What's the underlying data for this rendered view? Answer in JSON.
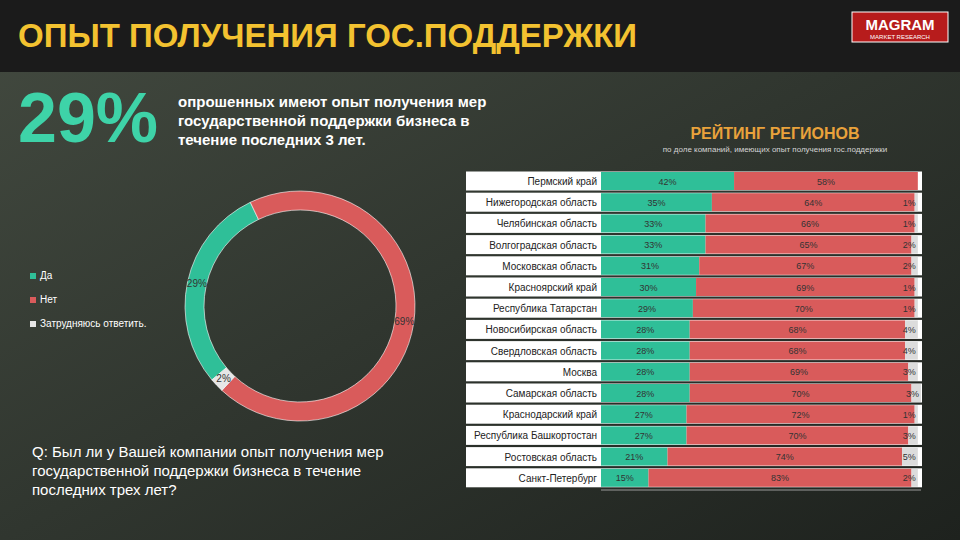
{
  "header": {
    "title": "ОПЫТ ПОЛУЧЕНИЯ ГОС.ПОДДЕРЖКИ",
    "logo": "MAGRAM",
    "logo_subtitle": "MARKET RESEARCH"
  },
  "headline": {
    "figure": "29%",
    "text": "опрошенных имеют опыт получения мер государственной поддержки бизнеса в течение последних 3 лет."
  },
  "question": "Q: Был ли у Вашей компании опыт получения мер государственной поддержки бизнеса в течение последних трех лет?",
  "chart_data": [
    {
      "type": "pie",
      "categories": [
        "Да",
        "Нет",
        "Затрудняюсь ответить."
      ],
      "values": [
        29,
        69,
        2
      ],
      "value_labels": [
        "29%",
        "69%",
        "2%"
      ],
      "colors": [
        "#2fbf98",
        "#d95b5b",
        "#e6e6e6"
      ],
      "legend": "left",
      "data_labels": true
    },
    {
      "type": "bar",
      "orientation": "horizontal",
      "stacked": true,
      "title": "РЕЙТИНГ РЕГИОНОВ",
      "subtitle": "по доле компаний, имеющих опыт получения гос.поддержки",
      "categories": [
        "Пермский край",
        "Нижегородская область",
        "Челябинская область",
        "Волгоградская область",
        "Московская область",
        "Красноярский край",
        "Республика Татарстан",
        "Новосибирская область",
        "Свердловская область",
        "Москва",
        "Самарская область",
        "Краснодарский край",
        "Республика Башкортостан",
        "Ростовская область",
        "Санкт-Петербург"
      ],
      "xlim": [
        0,
        101
      ],
      "tick_labels": "y",
      "data_labels": true,
      "series": [
        {
          "color": "#2fbf98",
          "values": [
            42,
            35,
            33,
            33,
            31,
            30,
            29,
            28,
            28,
            28,
            28,
            27,
            27,
            21,
            15
          ],
          "value_labels": [
            "42%",
            "35%",
            "33%",
            "33%",
            "31%",
            "30%",
            "29%",
            "28%",
            "28%",
            "28%",
            "28%",
            "27%",
            "27%",
            "21%",
            "15%"
          ]
        },
        {
          "color": "#d95b5b",
          "values": [
            58,
            64,
            66,
            65,
            67,
            69,
            70,
            68,
            68,
            69,
            70,
            72,
            70,
            74,
            83
          ],
          "value_labels": [
            "58%",
            "64%",
            "66%",
            "65%",
            "67%",
            "69%",
            "70%",
            "68%",
            "68%",
            "69%",
            "70%",
            "72%",
            "70%",
            "74%",
            "83%"
          ]
        },
        {
          "color": "#dcdcdc",
          "values": [
            null,
            1,
            1,
            2,
            2,
            1,
            1,
            4,
            4,
            3,
            3,
            1,
            3,
            5,
            2
          ],
          "value_labels": [
            null,
            "1%",
            "1%",
            "2%",
            "2%",
            "1%",
            "1%",
            "4%",
            "4%",
            "3%",
            "3%",
            "1%",
            "3%",
            "5%",
            "2%"
          ]
        }
      ]
    }
  ]
}
